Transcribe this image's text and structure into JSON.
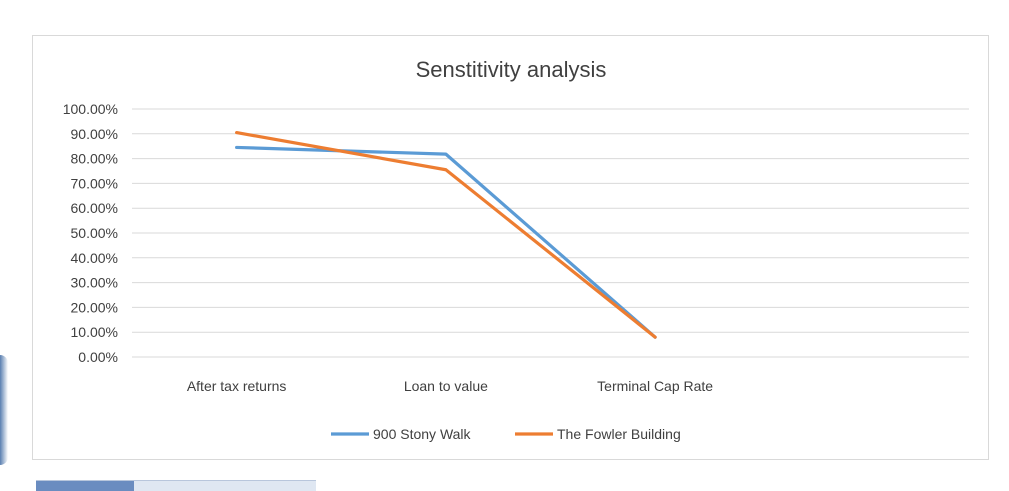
{
  "chart_data": {
    "type": "line",
    "title": "Senstitivity analysis",
    "categories": [
      "After tax returns",
      "Loan to value",
      "Terminal Cap Rate"
    ],
    "series": [
      {
        "name": "900 Stony Walk",
        "color": "#5b9bd5",
        "values": [
          84.5,
          81.8,
          8.0
        ]
      },
      {
        "name": "The Fowler Building",
        "color": "#ed7d31",
        "values": [
          90.5,
          75.5,
          8.0
        ]
      }
    ],
    "y_ticks": [
      "0.00%",
      "10.00%",
      "20.00%",
      "30.00%",
      "40.00%",
      "50.00%",
      "60.00%",
      "70.00%",
      "80.00%",
      "90.00%",
      "100.00%"
    ],
    "ylim": [
      0,
      100
    ],
    "grid": true,
    "legend_position": "bottom"
  }
}
